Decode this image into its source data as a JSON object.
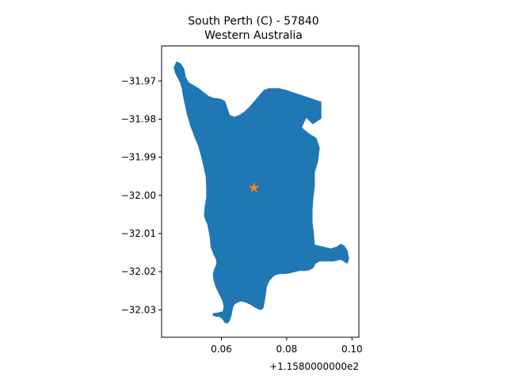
{
  "figure": {
    "title_line1": "South Perth (C) - 57840",
    "title_line2": "Western Australia",
    "x_offset_label": "+1.1580000000e2"
  },
  "colors": {
    "region_fill": "#1f77b4",
    "centroid_marker": "#ff7f0e",
    "axes": "#000000"
  },
  "chart_data": {
    "type": "map",
    "x_ticks": [
      {
        "value": 0.06,
        "label": "0.06"
      },
      {
        "value": 0.08,
        "label": "0.08"
      },
      {
        "value": 0.1,
        "label": "0.10"
      }
    ],
    "y_ticks": [
      {
        "value": -31.97,
        "label": "−31.97"
      },
      {
        "value": -31.98,
        "label": "−31.98"
      },
      {
        "value": -31.99,
        "label": "−31.99"
      },
      {
        "value": -32.0,
        "label": "−32.00"
      },
      {
        "value": -32.01,
        "label": "−32.01"
      },
      {
        "value": -32.02,
        "label": "−32.02"
      },
      {
        "value": -32.03,
        "label": "−32.03"
      }
    ],
    "xlim": [
      0.0417,
      0.1021
    ],
    "ylim": [
      -32.0372,
      -31.9608
    ],
    "centroid": {
      "x": 0.07,
      "y": -31.998,
      "marker": "star"
    },
    "region_outline": [
      [
        0.0463,
        -31.965
      ],
      [
        0.0475,
        -31.9655
      ],
      [
        0.0485,
        -31.9668
      ],
      [
        0.049,
        -31.969
      ],
      [
        0.05,
        -31.9705
      ],
      [
        0.0515,
        -31.9712
      ],
      [
        0.053,
        -31.972
      ],
      [
        0.0545,
        -31.973
      ],
      [
        0.056,
        -31.974
      ],
      [
        0.0575,
        -31.9745
      ],
      [
        0.0595,
        -31.9747
      ],
      [
        0.061,
        -31.9753
      ],
      [
        0.0625,
        -31.979
      ],
      [
        0.064,
        -31.9795
      ],
      [
        0.0655,
        -31.979
      ],
      [
        0.067,
        -31.9782
      ],
      [
        0.0685,
        -31.977
      ],
      [
        0.07,
        -31.9755
      ],
      [
        0.0715,
        -31.974
      ],
      [
        0.073,
        -31.9725
      ],
      [
        0.0745,
        -31.972
      ],
      [
        0.076,
        -31.972
      ],
      [
        0.0775,
        -31.972
      ],
      [
        0.079,
        -31.9723
      ],
      [
        0.08,
        -31.9725
      ],
      [
        0.0905,
        -31.9755
      ],
      [
        0.0905,
        -31.9798
      ],
      [
        0.088,
        -31.9812
      ],
      [
        0.086,
        -31.9795
      ],
      [
        0.0845,
        -31.9822
      ],
      [
        0.087,
        -31.984
      ],
      [
        0.089,
        -31.985
      ],
      [
        0.09,
        -31.9875
      ],
      [
        0.0895,
        -31.991
      ],
      [
        0.0885,
        -31.994
      ],
      [
        0.0885,
        -31.9975
      ],
      [
        0.088,
        -32.001
      ],
      [
        0.0878,
        -32.004
      ],
      [
        0.0878,
        -32.007
      ],
      [
        0.0882,
        -32.01
      ],
      [
        0.0885,
        -32.013
      ],
      [
        0.091,
        -32.0135
      ],
      [
        0.0935,
        -32.014
      ],
      [
        0.0955,
        -32.0135
      ],
      [
        0.0965,
        -32.0128
      ],
      [
        0.0975,
        -32.0132
      ],
      [
        0.0985,
        -32.0145
      ],
      [
        0.099,
        -32.0165
      ],
      [
        0.0985,
        -32.0178
      ],
      [
        0.0975,
        -32.0172
      ],
      [
        0.0965,
        -32.0168
      ],
      [
        0.0955,
        -32.017
      ],
      [
        0.0945,
        -32.0172
      ],
      [
        0.0925,
        -32.0172
      ],
      [
        0.091,
        -32.0172
      ],
      [
        0.09,
        -32.0172
      ],
      [
        0.0888,
        -32.0178
      ],
      [
        0.088,
        -32.019
      ],
      [
        0.087,
        -32.0195
      ],
      [
        0.0855,
        -32.0197
      ],
      [
        0.084,
        -32.0197
      ],
      [
        0.0825,
        -32.02
      ],
      [
        0.081,
        -32.0203
      ],
      [
        0.0795,
        -32.0205
      ],
      [
        0.078,
        -32.0205
      ],
      [
        0.0765,
        -32.0208
      ],
      [
        0.0755,
        -32.0215
      ],
      [
        0.0745,
        -32.0225
      ],
      [
        0.0738,
        -32.024
      ],
      [
        0.0735,
        -32.026
      ],
      [
        0.0732,
        -32.0275
      ],
      [
        0.0728,
        -32.0295
      ],
      [
        0.072,
        -32.03
      ],
      [
        0.0705,
        -32.0294
      ],
      [
        0.069,
        -32.0286
      ],
      [
        0.0675,
        -32.028
      ],
      [
        0.066,
        -32.0277
      ],
      [
        0.065,
        -32.028
      ],
      [
        0.064,
        -32.0285
      ],
      [
        0.0635,
        -32.0293
      ],
      [
        0.0632,
        -32.0305
      ],
      [
        0.063,
        -32.0315
      ],
      [
        0.0625,
        -32.0328
      ],
      [
        0.0618,
        -32.0335
      ],
      [
        0.061,
        -32.0333
      ],
      [
        0.0605,
        -32.0325
      ],
      [
        0.0595,
        -32.0318
      ],
      [
        0.0585,
        -32.0317
      ],
      [
        0.0575,
        -32.0315
      ],
      [
        0.0575,
        -32.031
      ],
      [
        0.059,
        -32.0308
      ],
      [
        0.0605,
        -32.0305
      ],
      [
        0.0608,
        -32.0292
      ],
      [
        0.0605,
        -32.0278
      ],
      [
        0.0598,
        -32.0265
      ],
      [
        0.059,
        -32.0252
      ],
      [
        0.0583,
        -32.0238
      ],
      [
        0.0577,
        -32.0222
      ],
      [
        0.0575,
        -32.0205
      ],
      [
        0.058,
        -32.0192
      ],
      [
        0.0586,
        -32.018
      ],
      [
        0.0585,
        -32.0168
      ],
      [
        0.0577,
        -32.0155
      ],
      [
        0.0568,
        -32.0135
      ],
      [
        0.0566,
        -32.0112
      ],
      [
        0.0562,
        -32.0093
      ],
      [
        0.0558,
        -32.0075
      ],
      [
        0.0552,
        -32.0065
      ],
      [
        0.0548,
        -32.0053
      ],
      [
        0.055,
        -32.003
      ],
      [
        0.0555,
        -32.0005
      ],
      [
        0.0555,
        -31.998
      ],
      [
        0.0553,
        -31.995
      ],
      [
        0.0548,
        -31.993
      ],
      [
        0.054,
        -31.99
      ],
      [
        0.053,
        -31.987
      ],
      [
        0.0518,
        -31.9845
      ],
      [
        0.0505,
        -31.9815
      ],
      [
        0.0495,
        -31.9785
      ],
      [
        0.049,
        -31.9765
      ],
      [
        0.0485,
        -31.9745
      ],
      [
        0.048,
        -31.972
      ],
      [
        0.0475,
        -31.9705
      ],
      [
        0.046,
        -31.968
      ],
      [
        0.0455,
        -31.9665
      ]
    ]
  }
}
